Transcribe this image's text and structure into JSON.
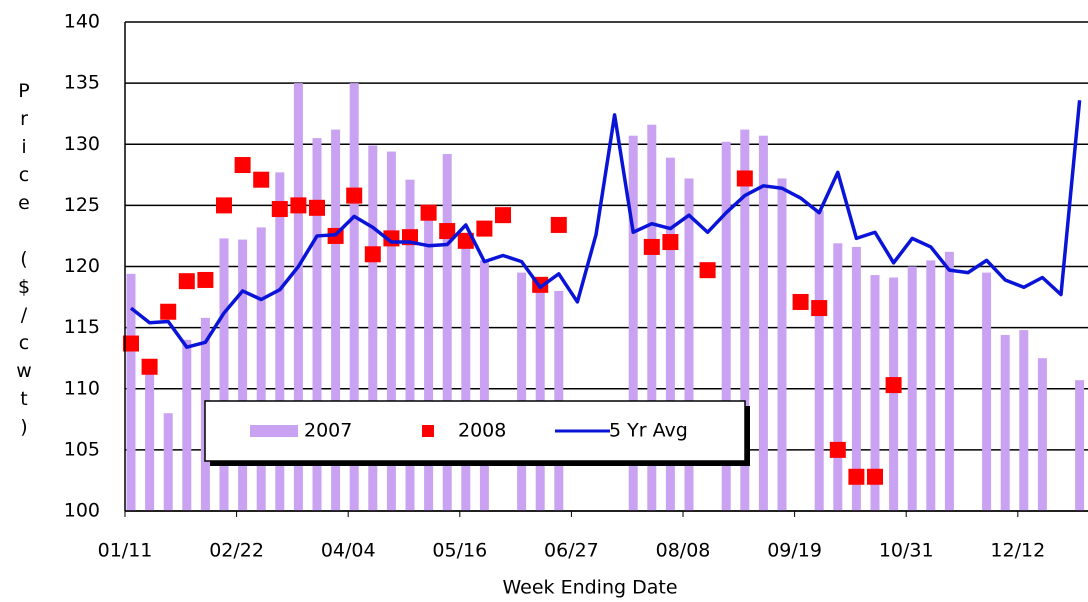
{
  "chart_data": {
    "type": "bar",
    "y_label": "Price ($/cwt)",
    "x_label": "Week Ending Date",
    "categories": [
      "01/11",
      null,
      null,
      null,
      null,
      null,
      "02/22",
      null,
      null,
      null,
      null,
      null,
      "04/04",
      null,
      null,
      null,
      null,
      null,
      "05/16",
      null,
      null,
      null,
      null,
      null,
      "06/27",
      null,
      null,
      null,
      null,
      null,
      "08/08",
      null,
      null,
      null,
      null,
      null,
      "09/19",
      null,
      null,
      null,
      null,
      null,
      "10/31",
      null,
      null,
      null,
      null,
      null,
      "12/12",
      null,
      null,
      null
    ],
    "ylim": [
      100,
      140
    ],
    "yticks": [
      100,
      105,
      110,
      115,
      120,
      125,
      130,
      135,
      140
    ],
    "grid": true,
    "series": [
      {
        "name": "2007",
        "type": "bar",
        "color": "#c9a2f2",
        "values": [
          119.4,
          112,
          108,
          114,
          115.8,
          122.3,
          122.2,
          123.2,
          127.7,
          135,
          130.5,
          131.2,
          135,
          129.9,
          129.4,
          127.1,
          124.5,
          129.2,
          122.5,
          120.5,
          100,
          119.5,
          118.5,
          118,
          100,
          100,
          100,
          130.7,
          131.6,
          128.9,
          127.2,
          100,
          130.2,
          131.2,
          130.7,
          127.2,
          100,
          124.6,
          121.9,
          121.6,
          119.3,
          119.1,
          120,
          120.5,
          121.2,
          100,
          119.5,
          114.4,
          114.8,
          112.5,
          100,
          110.7
        ]
      },
      {
        "name": "2008",
        "type": "scatter",
        "color": "#ff0000",
        "values": [
          113.7,
          111.8,
          116.3,
          118.8,
          118.9,
          125,
          128.3,
          127.1,
          124.7,
          125,
          124.8,
          122.5,
          125.8,
          121,
          122.3,
          122.4,
          124.4,
          122.9,
          122.1,
          123.1,
          124.2,
          null,
          118.5,
          123.4,
          null,
          null,
          null,
          null,
          121.6,
          122,
          null,
          119.7,
          null,
          127.2,
          null,
          null,
          117.1,
          116.6,
          105,
          102.8,
          102.8,
          110.3,
          null,
          null,
          null,
          null,
          null,
          null,
          null,
          null,
          null,
          null
        ]
      },
      {
        "name": "5 Yr Avg",
        "type": "line",
        "color": "#0a14d8",
        "values": [
          116.6,
          115.4,
          115.5,
          113.4,
          113.8,
          116.2,
          118,
          117.3,
          118.1,
          120,
          122.5,
          122.6,
          124.1,
          123.2,
          122,
          122,
          121.7,
          121.8,
          123.4,
          120.4,
          120.9,
          120.4,
          118.3,
          119.4,
          117.1,
          122.6,
          132.4,
          122.8,
          123.5,
          123.1,
          124.2,
          122.8,
          124.4,
          125.8,
          126.6,
          126.4,
          125.6,
          124.4,
          127.7,
          122.3,
          122.8,
          120.3,
          122.3,
          121.6,
          119.7,
          119.5,
          120.5,
          118.9,
          118.3,
          119.1,
          117.7,
          133.6
        ]
      }
    ]
  }
}
